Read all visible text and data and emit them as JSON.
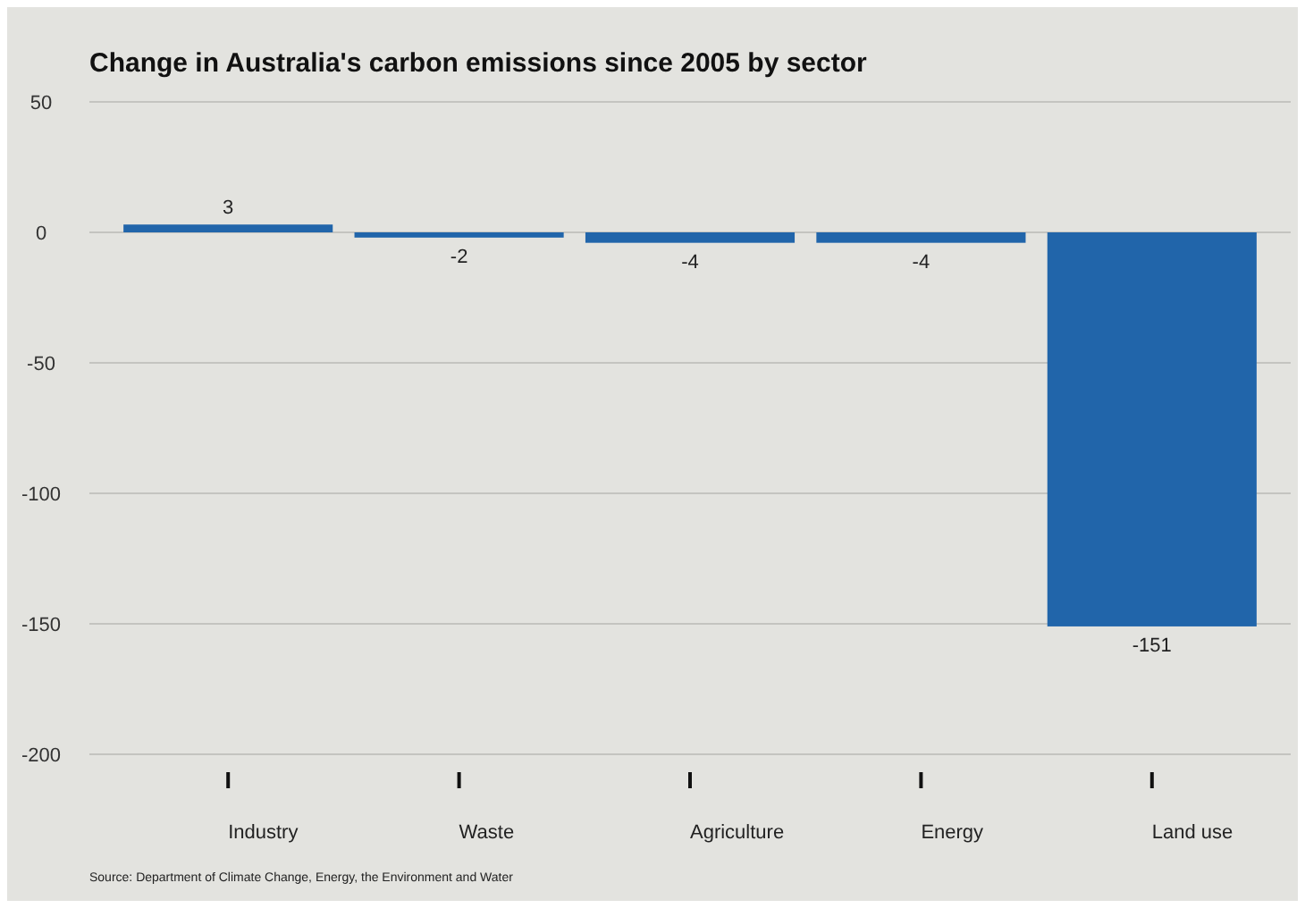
{
  "chart_data": {
    "type": "bar",
    "title": "Change in Australia's carbon emissions since 2005 by sector",
    "categories": [
      "Industry",
      "Waste",
      "Agriculture",
      "Energy",
      "Land use"
    ],
    "values": [
      3,
      -2,
      -4,
      -4,
      -151
    ],
    "color": "#2165aa",
    "ylim": [
      -200,
      50
    ],
    "yticks": [
      50,
      0,
      -50,
      -100,
      -150,
      -200
    ],
    "grid": "y",
    "data_labels": true,
    "annotations": [
      "Source: Department of Climate Change, Energy, the Environment and Water"
    ]
  }
}
